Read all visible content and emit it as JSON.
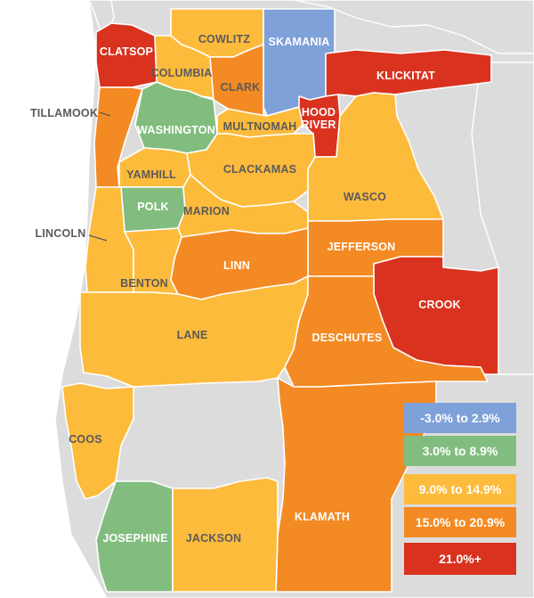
{
  "colors": {
    "blue": "#7fa1d9",
    "green": "#82bd7f",
    "yellow": "#fdbb3c",
    "orange": "#f48a24",
    "red": "#d9321f",
    "background": "#dcdcdc"
  },
  "legend": [
    {
      "label": "-3.0% to 2.9%",
      "color": "#7fa1d9"
    },
    {
      "label": "3.0% to 8.9%",
      "color": "#82bd7f"
    },
    {
      "label": "9.0% to 14.9%",
      "color": "#fdbb3c"
    },
    {
      "label": "15.0% to 20.9%",
      "color": "#f48a24"
    },
    {
      "label": "21.0%+",
      "color": "#d9321f"
    }
  ],
  "counties": {
    "clatsop": {
      "name": "CLATSOP",
      "color": "red"
    },
    "cowlitz": {
      "name": "COWLITZ",
      "color": "yellow"
    },
    "skamania": {
      "name": "SKAMANIA",
      "color": "blue"
    },
    "columbia": {
      "name": "COLUMBIA",
      "color": "yellow"
    },
    "clark": {
      "name": "CLARK",
      "color": "orange"
    },
    "klickitat": {
      "name": "KLICKITAT",
      "color": "red"
    },
    "tillamook": {
      "name": "TILLAMOOK",
      "color": "orange"
    },
    "washington": {
      "name": "WASHINGTON",
      "color": "green"
    },
    "multnomah": {
      "name": "MULTNOMAH",
      "color": "yellow"
    },
    "hood_river": {
      "name_line1": "HOOD",
      "name_line2": "RIVER",
      "color": "red"
    },
    "yamhill": {
      "name": "YAMHILL",
      "color": "yellow"
    },
    "clackamas": {
      "name": "CLACKAMAS",
      "color": "yellow"
    },
    "polk": {
      "name": "POLK",
      "color": "green"
    },
    "marion": {
      "name": "MARION",
      "color": "yellow"
    },
    "wasco": {
      "name": "WASCO",
      "color": "yellow"
    },
    "lincoln": {
      "name": "LINCOLN",
      "color": "yellow"
    },
    "jefferson": {
      "name": "JEFFERSON",
      "color": "orange"
    },
    "linn": {
      "name": "LINN",
      "color": "orange"
    },
    "benton": {
      "name": "BENTON",
      "color": "yellow"
    },
    "crook": {
      "name": "CROOK",
      "color": "red"
    },
    "lane": {
      "name": "LANE",
      "color": "yellow"
    },
    "deschutes": {
      "name": "DESCHUTES",
      "color": "orange"
    },
    "coos": {
      "name": "COOS",
      "color": "yellow"
    },
    "klamath": {
      "name": "KLAMATH",
      "color": "orange"
    },
    "josephine": {
      "name": "JOSEPHINE",
      "color": "green"
    },
    "jackson": {
      "name": "JACKSON",
      "color": "yellow"
    }
  }
}
